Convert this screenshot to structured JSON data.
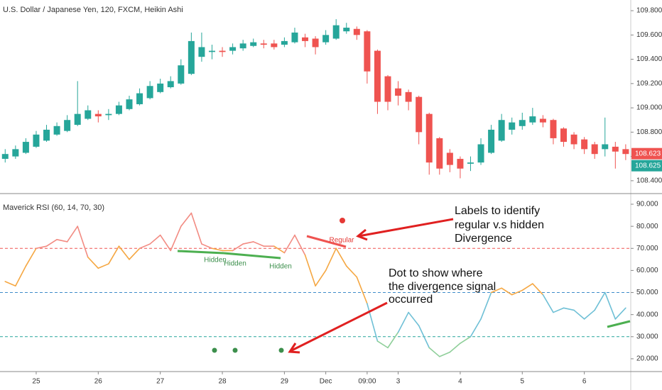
{
  "chart_data": [
    {
      "type": "candlestick",
      "title": "U.S. Dollar / Japanese Yen, 120, FXCM, Heikin Ashi",
      "up_color": "#26a69a",
      "down_color": "#ef5350",
      "categories": [
        null,
        null,
        null,
        "25",
        null,
        null,
        null,
        null,
        null,
        "26",
        null,
        null,
        null,
        null,
        null,
        "27",
        null,
        null,
        null,
        null,
        null,
        "28",
        null,
        null,
        null,
        null,
        null,
        "29",
        null,
        null,
        null,
        "Dec",
        null,
        null,
        null,
        "09:00",
        null,
        null,
        "3",
        null,
        null,
        null,
        null,
        null,
        "4",
        null,
        null,
        null,
        null,
        null,
        "5",
        null,
        null,
        null,
        null,
        null,
        "6",
        null,
        null,
        null,
        null
      ],
      "open": [
        108.58,
        108.6,
        108.63,
        108.68,
        108.73,
        108.78,
        108.81,
        108.86,
        108.91,
        108.95,
        108.94,
        108.95,
        108.99,
        109.03,
        109.08,
        109.13,
        109.17,
        109.2,
        109.28,
        109.42,
        109.46,
        109.47,
        109.47,
        109.49,
        109.51,
        109.53,
        109.53,
        109.52,
        109.54,
        109.58,
        109.57,
        109.54,
        109.57,
        109.63,
        109.65,
        109.63,
        109.47,
        109.26,
        109.16,
        109.13,
        109.09,
        108.95,
        108.75,
        108.63,
        108.58,
        108.54,
        108.55,
        108.63,
        108.73,
        108.82,
        108.85,
        108.88,
        108.91,
        108.9,
        108.83,
        108.78,
        108.74,
        108.7,
        108.66,
        108.68,
        108.66
      ],
      "high": [
        108.66,
        108.69,
        108.75,
        108.81,
        108.86,
        108.88,
        108.94,
        109.22,
        109.02,
        108.98,
        108.99,
        109.05,
        109.1,
        109.16,
        109.22,
        109.24,
        109.26,
        109.4,
        109.62,
        109.62,
        109.52,
        109.5,
        109.53,
        109.56,
        109.57,
        109.56,
        109.56,
        109.58,
        109.66,
        109.61,
        109.59,
        109.64,
        109.73,
        109.7,
        109.67,
        109.64,
        109.48,
        109.27,
        109.22,
        109.15,
        109.1,
        108.96,
        108.76,
        108.66,
        108.6,
        108.6,
        108.75,
        108.86,
        108.95,
        108.92,
        108.96,
        109.0,
        108.94,
        108.91,
        108.84,
        108.8,
        108.76,
        108.72,
        108.92,
        108.72,
        108.7
      ],
      "low": [
        108.55,
        108.58,
        108.62,
        108.67,
        108.72,
        108.77,
        108.8,
        108.85,
        108.9,
        108.88,
        108.9,
        108.94,
        108.98,
        109.02,
        109.07,
        109.12,
        109.16,
        109.19,
        109.27,
        109.38,
        109.4,
        109.42,
        109.44,
        109.47,
        109.5,
        109.49,
        109.48,
        109.5,
        109.53,
        109.5,
        109.44,
        109.52,
        109.56,
        109.61,
        109.56,
        109.2,
        108.95,
        108.98,
        109.02,
        108.98,
        108.7,
        108.45,
        108.45,
        108.47,
        108.42,
        108.48,
        108.53,
        108.62,
        108.72,
        108.78,
        108.82,
        108.86,
        108.84,
        108.7,
        108.68,
        108.66,
        108.62,
        108.58,
        108.6,
        108.5,
        108.57
      ],
      "close": [
        108.62,
        108.66,
        108.72,
        108.78,
        108.82,
        108.85,
        108.9,
        108.95,
        108.98,
        108.93,
        108.95,
        109.02,
        109.07,
        109.12,
        109.18,
        109.2,
        109.22,
        109.35,
        109.55,
        109.5,
        109.47,
        109.46,
        109.5,
        109.53,
        109.54,
        109.52,
        109.5,
        109.55,
        109.62,
        109.55,
        109.5,
        109.6,
        109.68,
        109.66,
        109.6,
        109.3,
        109.05,
        109.05,
        109.1,
        109.05,
        108.8,
        108.55,
        108.5,
        108.53,
        108.5,
        108.55,
        108.7,
        108.82,
        108.9,
        108.88,
        108.9,
        108.93,
        108.88,
        108.75,
        108.72,
        108.7,
        108.66,
        108.62,
        108.7,
        108.64,
        108.62
      ],
      "ylim": [
        108.3,
        109.888
      ],
      "yticks": [
        {
          "value": 108.4,
          "label": "108.400"
        },
        {
          "value": 108.6,
          "label": "108.600"
        },
        {
          "value": 108.8,
          "label": "108.800"
        },
        {
          "value": 109.0,
          "label": "109.000"
        },
        {
          "value": 109.2,
          "label": "109.200"
        },
        {
          "value": 109.4,
          "label": "109.400"
        },
        {
          "value": 109.6,
          "label": "109.600"
        },
        {
          "value": 109.8,
          "label": "109.800"
        }
      ],
      "last_labels": [
        {
          "value": 108.623,
          "label": "108.623",
          "color": "#ef5350"
        },
        {
          "value": 108.625,
          "label": "108.625",
          "color": "#26a69a"
        }
      ]
    },
    {
      "type": "line",
      "title": "Maverick RSI (60, 14, 70, 30)",
      "series": [
        {
          "name": "Maverick RSI",
          "below_color": "#8fcf9a",
          "values": [
            55,
            53,
            62,
            70,
            71,
            74,
            73,
            80,
            66,
            61,
            63,
            71,
            65,
            70,
            72,
            76,
            69,
            80,
            86,
            72,
            70,
            69,
            69,
            72,
            73,
            71,
            71,
            68,
            76,
            67,
            53,
            60,
            70,
            62,
            57,
            45,
            28,
            25,
            32,
            41,
            35,
            25,
            21,
            23,
            27,
            30,
            38,
            50,
            52,
            49,
            51,
            54,
            49,
            41,
            43,
            42,
            38,
            42,
            50,
            38,
            43
          ]
        }
      ],
      "levels": [
        {
          "value": 70,
          "line_color": "#ef5350",
          "zone_color": "#f28b82"
        },
        {
          "value": 50,
          "line_color": "#3d8bc9",
          "zone_color": "#f5a742"
        },
        {
          "value": 30,
          "line_color": "#26a69a",
          "zone_color": "#6fc0d6"
        }
      ],
      "ylim": [
        14.2,
        94.5
      ],
      "yticks": [
        {
          "value": 20,
          "label": "20.000"
        },
        {
          "value": 30,
          "label": "30.000"
        },
        {
          "value": 40,
          "label": "40.000"
        },
        {
          "value": 50,
          "label": "50.000"
        },
        {
          "value": 60,
          "label": "60.000"
        },
        {
          "value": 70,
          "label": "70.000"
        },
        {
          "value": 80,
          "label": "80.000"
        },
        {
          "value": 90,
          "label": "90.000"
        }
      ],
      "annotations": {
        "hidden": [
          "Hidden",
          "Hidden",
          "Hidden"
        ],
        "regular": "Regular",
        "callout_labels": [
          "Labels to identify",
          "regular v.s hidden",
          "Divergence"
        ],
        "callout_dots": [
          "Dot to show where",
          "the divergence signal",
          "occurred"
        ]
      }
    }
  ]
}
